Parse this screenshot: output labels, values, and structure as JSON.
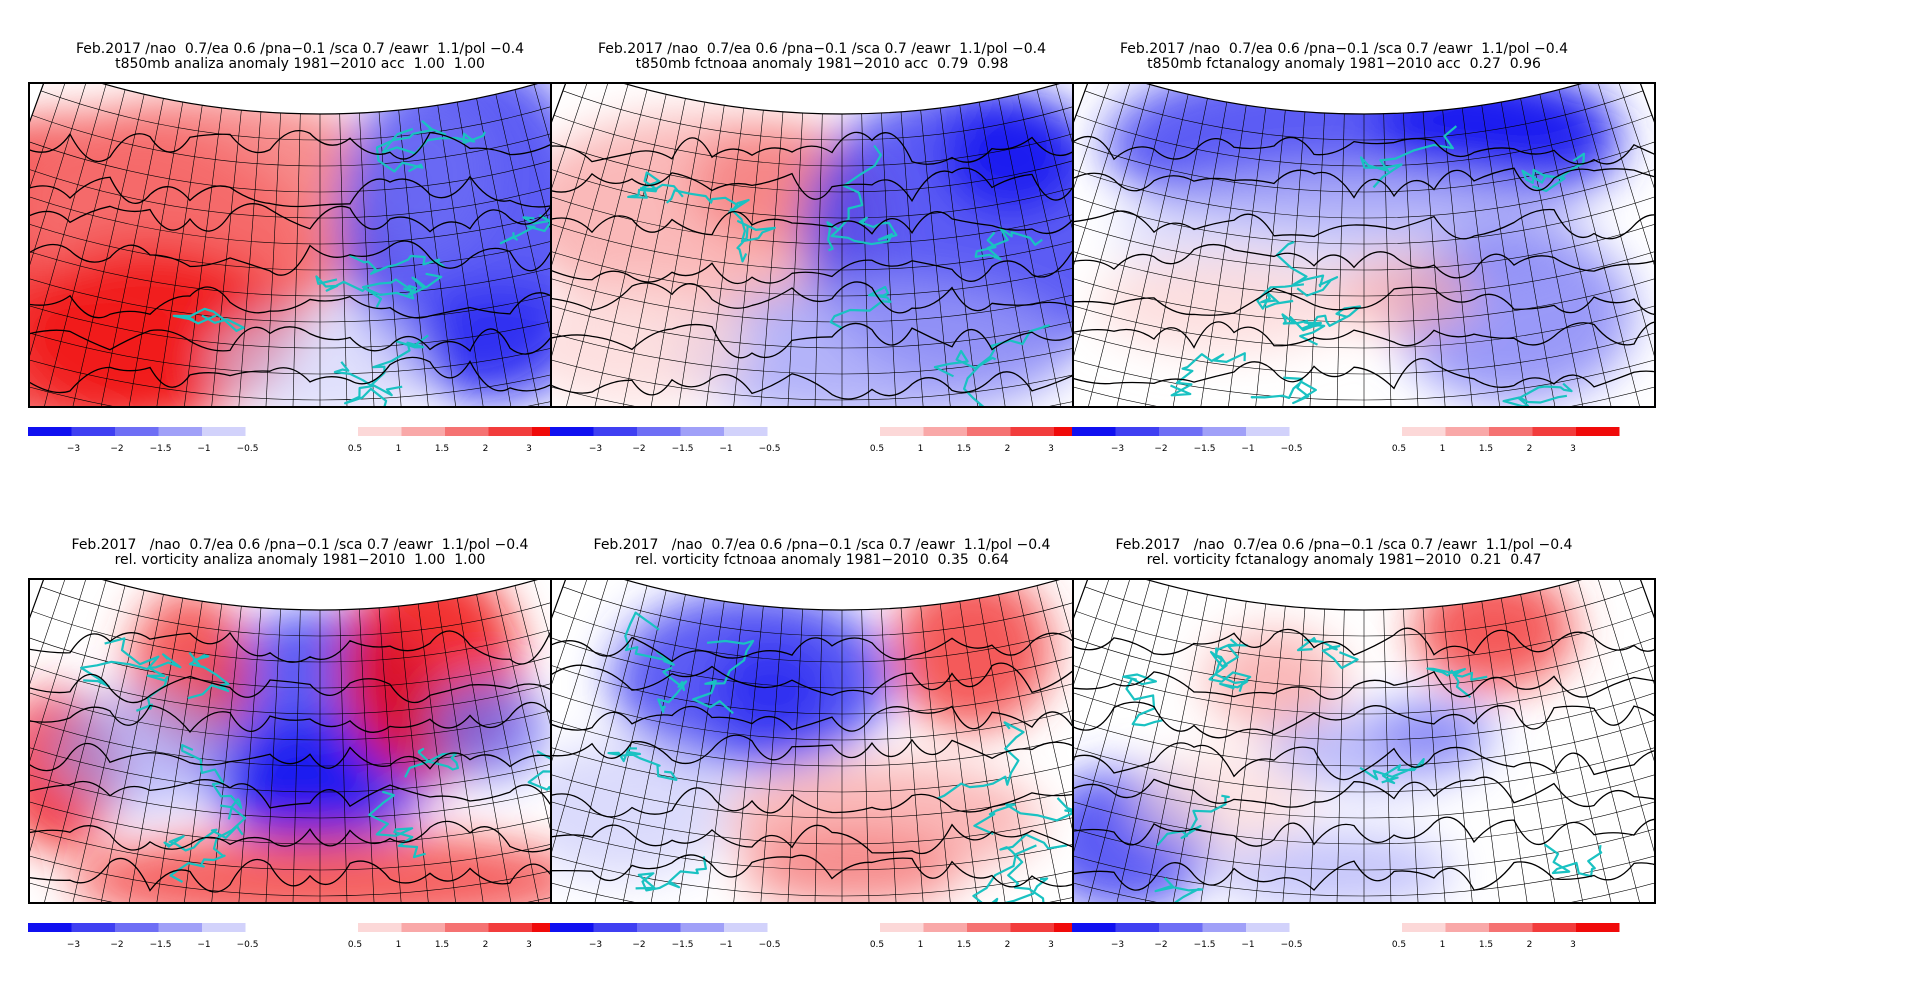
{
  "panels": [
    {
      "title1": "Feb.2017 /nao  0.7/ea 0.6 /pna−0.1 /sca 0.7 /eawr  1.1/pol −0.4",
      "title2": "t850mb analiza anomaly 1981−2010 acc  1.00  1.00",
      "pattern": "t850-analiza"
    },
    {
      "title1": "Feb.2017 /nao  0.7/ea 0.6 /pna−0.1 /sca 0.7 /eawr  1.1/pol −0.4",
      "title2": "t850mb fctnoaa anomaly 1981−2010 acc  0.79  0.98",
      "pattern": "t850-fctnoaa"
    },
    {
      "title1": "Feb.2017 /nao  0.7/ea 0.6 /pna−0.1 /sca 0.7 /eawr  1.1/pol −0.4",
      "title2": "t850mb fctanalogy anomaly 1981−2010 acc  0.27  0.96",
      "pattern": "t850-fctanalogy"
    },
    {
      "title1": "Feb.2017   /nao  0.7/ea 0.6 /pna−0.1 /sca 0.7 /eawr  1.1/pol −0.4",
      "title2": "rel. vorticity analiza anomaly 1981−2010  1.00  1.00",
      "pattern": "vort-analiza"
    },
    {
      "title1": "Feb.2017   /nao  0.7/ea 0.6 /pna−0.1 /sca 0.7 /eawr  1.1/pol −0.4",
      "title2": "rel. vorticity fctnoaa anomaly 1981−2010  0.35  0.64",
      "pattern": "vort-fctnoaa"
    },
    {
      "title1": "Feb.2017   /nao  0.7/ea 0.6 /pna−0.1 /sca 0.7 /eawr  1.1/pol −0.4",
      "title2": "rel. vorticity fctanalogy anomaly 1981−2010  0.21  0.47",
      "pattern": "vort-fctanalogy"
    }
  ],
  "colorbar": {
    "neg_colors": [
      "#1010f0",
      "#3f3ff2",
      "#6e6ef5",
      "#a0a0f8",
      "#d2d2fb"
    ],
    "pos_colors": [
      "#fcd8d8",
      "#f9a8a8",
      "#f57272",
      "#f23c3c",
      "#f00a0a"
    ],
    "neg_labels": [
      "−3",
      "−2",
      "−1.5",
      "−1",
      "−0.5"
    ],
    "pos_labels": [
      "0.5",
      "1",
      "1.5",
      "2",
      "3"
    ]
  }
}
